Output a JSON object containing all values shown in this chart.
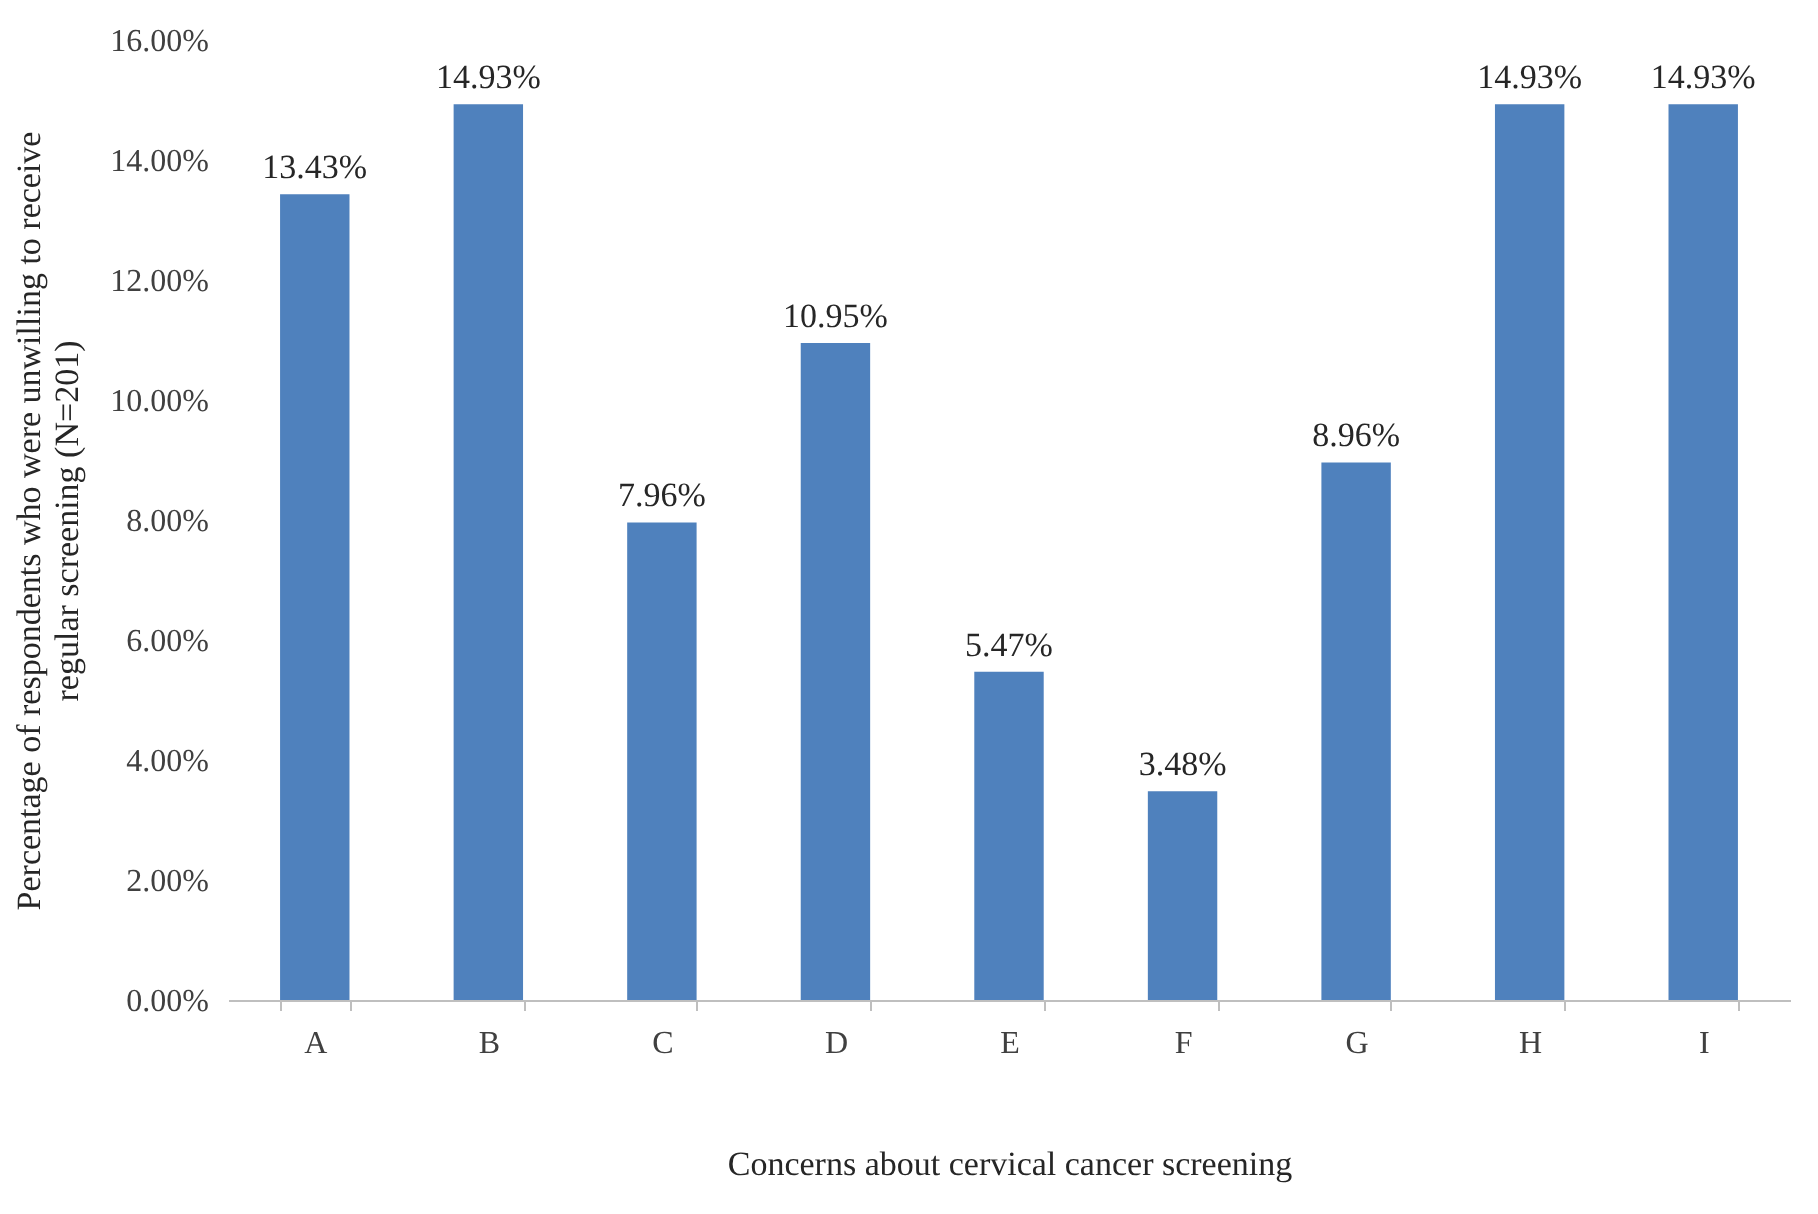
{
  "chart_data": {
    "type": "bar",
    "xlabel": "Concerns about cervical cancer screening",
    "ylabel": "Percentage of respondents who were unwilling to receive\nregular screening (N=201)",
    "categories": [
      "A",
      "B",
      "C",
      "D",
      "E",
      "F",
      "G",
      "H",
      "I"
    ],
    "values": [
      13.43,
      14.93,
      7.96,
      10.95,
      5.47,
      3.48,
      8.96,
      14.93,
      14.93
    ],
    "value_labels": [
      "13.43%",
      "14.93%",
      "7.96%",
      "10.95%",
      "5.47%",
      "3.48%",
      "8.96%",
      "14.93%",
      "14.93%"
    ],
    "color": "#4f81bd",
    "ylim": [
      0,
      16
    ],
    "yticks": [
      {
        "value": 0,
        "label": "0.00%"
      },
      {
        "value": 2,
        "label": "2.00%"
      },
      {
        "value": 4,
        "label": "4.00%"
      },
      {
        "value": 6,
        "label": "6.00%"
      },
      {
        "value": 8,
        "label": "8.00%"
      },
      {
        "value": 10,
        "label": "10.00%"
      },
      {
        "value": 12,
        "label": "12.00%"
      },
      {
        "value": 14,
        "label": "14.00%"
      },
      {
        "value": 16,
        "label": "16.00%"
      }
    ],
    "grid": false
  }
}
